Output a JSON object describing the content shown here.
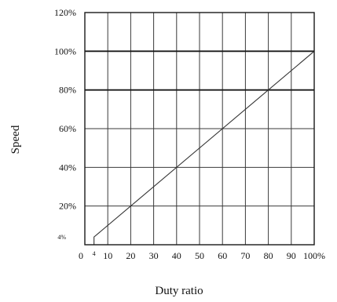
{
  "chart_data": {
    "type": "line",
    "xlabel": "Duty ratio",
    "ylabel": "Speed",
    "xlim": [
      0,
      100
    ],
    "ylim": [
      0,
      120
    ],
    "x_ticks": [
      {
        "value": 0,
        "label": "0"
      },
      {
        "value": 4,
        "label": "4"
      },
      {
        "value": 10,
        "label": "10"
      },
      {
        "value": 20,
        "label": "20"
      },
      {
        "value": 30,
        "label": "30"
      },
      {
        "value": 40,
        "label": "40"
      },
      {
        "value": 50,
        "label": "50"
      },
      {
        "value": 60,
        "label": "60"
      },
      {
        "value": 70,
        "label": "70"
      },
      {
        "value": 80,
        "label": "80"
      },
      {
        "value": 90,
        "label": "90"
      },
      {
        "value": 100,
        "label": "100%"
      }
    ],
    "y_ticks": [
      {
        "value": 4,
        "label": "4%"
      },
      {
        "value": 20,
        "label": "20%"
      },
      {
        "value": 40,
        "label": "40%"
      },
      {
        "value": 60,
        "label": "60%"
      },
      {
        "value": 80,
        "label": "80%"
      },
      {
        "value": 100,
        "label": "100%"
      },
      {
        "value": 120,
        "label": "120%"
      }
    ],
    "grid": true,
    "series": [
      {
        "x": [
          4,
          4,
          100
        ],
        "y": [
          0,
          4,
          100
        ],
        "color": "#333333"
      }
    ]
  }
}
